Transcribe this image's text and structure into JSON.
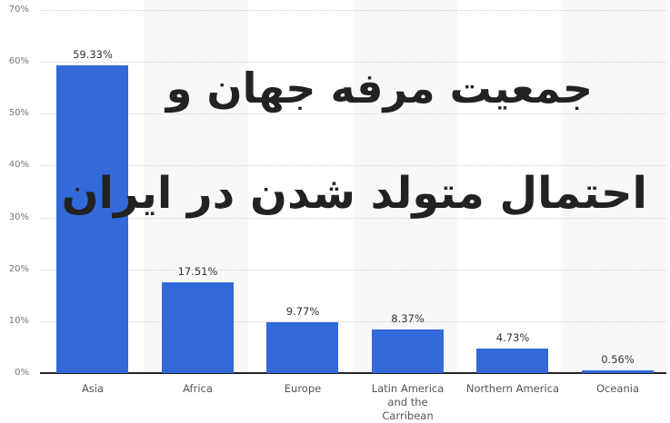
{
  "chart_data": {
    "type": "bar",
    "title": "",
    "overlay_title_lines": [
      "جمعیت مرفه جهان و",
      "احتمال متولد شدن در ایران"
    ],
    "xlabel": "",
    "ylabel": "",
    "categories": [
      "Asia",
      "Africa",
      "Europe",
      "Latin America and the Carribean",
      "Northern America",
      "Oceania"
    ],
    "category_label_lines": [
      [
        "Asia"
      ],
      [
        "Africa"
      ],
      [
        "Europe"
      ],
      [
        "Latin America",
        "and the",
        "Carribean"
      ],
      [
        "Northern America"
      ],
      [
        "Oceania"
      ]
    ],
    "values": [
      59.33,
      17.51,
      9.77,
      8.37,
      4.73,
      0.56
    ],
    "value_labels": [
      "59.33%",
      "17.51%",
      "9.77%",
      "8.37%",
      "4.73%",
      "0.56%"
    ],
    "ylim": [
      0,
      70
    ],
    "yticks": [
      "0%",
      "10%",
      "20%",
      "30%",
      "40%",
      "50%",
      "60%",
      "70%"
    ],
    "grid": true,
    "legend": "none",
    "bar_color": "#3369d8"
  },
  "colors": {
    "bar": "#3369d8",
    "band": "#f8f8f8",
    "text": "#333333"
  }
}
